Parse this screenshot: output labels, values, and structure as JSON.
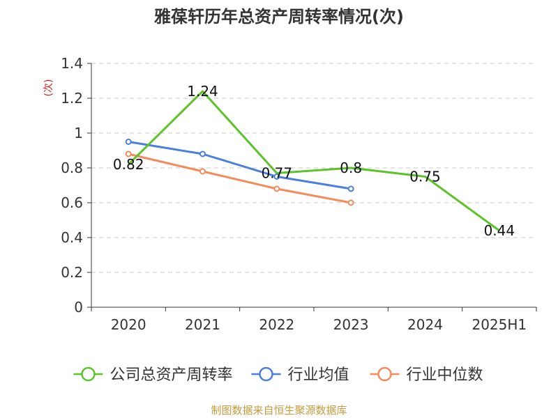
{
  "chart_data": {
    "type": "line",
    "title": "雅葆轩历年总资产周转率情况(次)",
    "ylabel": "(次)",
    "xlabel": "",
    "categories": [
      "2020",
      "2021",
      "2022",
      "2023",
      "2024",
      "2025H1"
    ],
    "y_ticks": [
      "0",
      "0.2",
      "0.4",
      "0.6",
      "0.8",
      "1",
      "1.2",
      "1.4"
    ],
    "ylim": [
      0,
      1.4
    ],
    "grid": "horizontal-dashed",
    "legend_position": "bottom",
    "series": [
      {
        "name": "公司总资产周转率",
        "values": [
          0.82,
          1.24,
          0.77,
          0.8,
          0.75,
          0.44
        ],
        "labels": [
          "0.82",
          "1.24",
          "0.77",
          "0.8",
          "0.75",
          "0.44"
        ],
        "color": "#5cc42a"
      },
      {
        "name": "行业均值",
        "values": [
          0.95,
          0.88,
          0.75,
          0.68,
          null,
          null
        ],
        "color": "#4a7fdc"
      },
      {
        "name": "行业中位数",
        "values": [
          0.88,
          0.78,
          0.68,
          0.6,
          null,
          null
        ],
        "color": "#f58a5a"
      }
    ]
  },
  "colors": {
    "title": "#333333",
    "ylabel": "#cc2222",
    "axis": "#333333",
    "grid": "#c8c8c8",
    "source": "#c89a3c"
  },
  "source": "制图数据来自恒生聚源数据库"
}
